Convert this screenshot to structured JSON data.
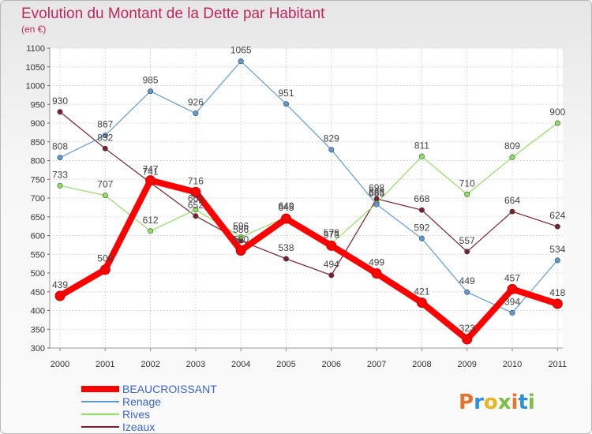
{
  "chart_data": {
    "type": "line",
    "title": "Evolution du Montant de la Dette par Habitant",
    "subtitle": "(en €)",
    "xlabel": "",
    "ylabel": "",
    "categories": [
      "2000",
      "2001",
      "2002",
      "2003",
      "2004",
      "2005",
      "2006",
      "2007",
      "2008",
      "2009",
      "2010",
      "2011"
    ],
    "ylim": [
      300,
      1100
    ],
    "yticks": [
      300,
      350,
      400,
      450,
      500,
      550,
      600,
      650,
      700,
      750,
      800,
      850,
      900,
      950,
      1000,
      1050,
      1100
    ],
    "grid": true,
    "legend_position": "bottom-left",
    "series": [
      {
        "name": "BEAUCROISSANT",
        "color": "#ff0000",
        "values": [
          439,
          509,
          747,
          716,
          560,
          645,
          573,
          499,
          421,
          323,
          457,
          418
        ]
      },
      {
        "name": "Renage",
        "color": "#5b9bd5",
        "values": [
          808,
          867,
          985,
          926,
          1065,
          951,
          829,
          683,
          592,
          449,
          394,
          534
        ]
      },
      {
        "name": "Rives",
        "color": "#90e060",
        "values": [
          733,
          707,
          612,
          669,
          596,
          649,
          578,
          686,
          811,
          710,
          809,
          900
        ]
      },
      {
        "name": "Izeaux",
        "color": "#7a1f2b",
        "values": [
          930,
          832,
          741,
          652,
          586,
          538,
          494,
          698,
          668,
          557,
          664,
          624
        ]
      }
    ]
  },
  "branding": {
    "logo_text": "Proxiti",
    "letter_colors": [
      "#e8742a",
      "#2f8fd8",
      "#f0b21e",
      "#7ac143",
      "#e8742a",
      "#2f8fd8",
      "#7ac143"
    ]
  }
}
